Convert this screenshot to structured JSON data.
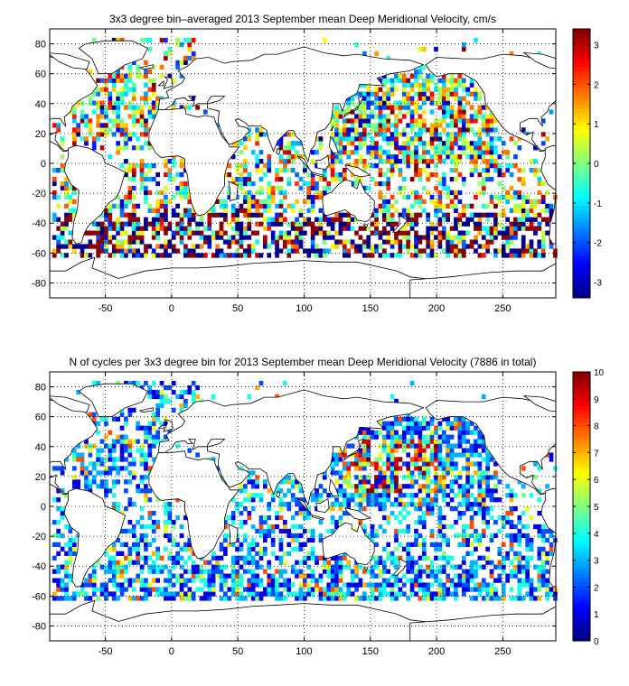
{
  "chart_data": [
    {
      "type": "heatmap",
      "title": "3x3 degree bin–averaged 2013 September mean Deep Meridional Velocity, cm/s",
      "xlabel": "",
      "ylabel": "",
      "xlim": [
        -92,
        290
      ],
      "ylim": [
        -90,
        90
      ],
      "xticks": [
        -50,
        0,
        50,
        100,
        150,
        200,
        250
      ],
      "yticks": [
        -80,
        -60,
        -40,
        -20,
        0,
        20,
        40,
        60,
        80
      ],
      "grid": true,
      "bin_size_deg": 3,
      "colormap": "jet",
      "colorbar": {
        "min": -3.4,
        "max": 3.4,
        "ticks": [
          -3,
          -2,
          -1,
          0,
          1,
          2,
          3
        ]
      },
      "land_outline": "coastlines",
      "dominant_regions": [
        {
          "region": "Southern Ocean",
          "lat_range": [
            -62,
            -35
          ],
          "lon_range": [
            -70,
            250
          ],
          "typical_value": "strong positive and negative (±3)"
        },
        {
          "region": "North Pacific",
          "lat_range": [
            5,
            55
          ],
          "lon_range": [
            125,
            240
          ],
          "typical_value": "mixed, many near 0 (cyan/green)"
        },
        {
          "region": "North Atlantic",
          "lat_range": [
            10,
            65
          ],
          "lon_range": [
            -75,
            -10
          ],
          "typical_value": "mixed, strong positive and negative"
        },
        {
          "region": "Indian Ocean",
          "lat_range": [
            -45,
            25
          ],
          "lon_range": [
            40,
            115
          ],
          "typical_value": "mixed"
        }
      ]
    },
    {
      "type": "heatmap",
      "title": "N of cycles per 3x3 degree bin for 2013 September mean Deep Meridional Velocity (7886 in total)",
      "total_cycles": 7886,
      "xlabel": "",
      "ylabel": "",
      "xlim": [
        -92,
        290
      ],
      "ylim": [
        -90,
        90
      ],
      "xticks": [
        -50,
        0,
        50,
        100,
        150,
        200,
        250
      ],
      "yticks": [
        -80,
        -60,
        -40,
        -20,
        0,
        20,
        40,
        60,
        80
      ],
      "grid": true,
      "bin_size_deg": 3,
      "colormap": "jet",
      "colorbar": {
        "min": 0,
        "max": 10,
        "ticks": [
          0,
          1,
          2,
          3,
          4,
          5,
          6,
          7,
          8,
          9,
          10
        ]
      },
      "land_outline": "coastlines",
      "dominant_regions": [
        {
          "region": "Northwest Pacific",
          "lat_range": [
            10,
            45
          ],
          "lon_range": [
            130,
            200
          ],
          "typical_value": "high counts (6–10)"
        },
        {
          "region": "Southern Ocean",
          "lat_range": [
            -62,
            -35
          ],
          "lon_range": [
            -70,
            250
          ],
          "typical_value": "low-moderate counts (1–4)"
        },
        {
          "region": "Indian Ocean",
          "lat_range": [
            -45,
            25
          ],
          "lon_range": [
            40,
            115
          ],
          "typical_value": "moderate counts (2–6)"
        }
      ]
    }
  ]
}
